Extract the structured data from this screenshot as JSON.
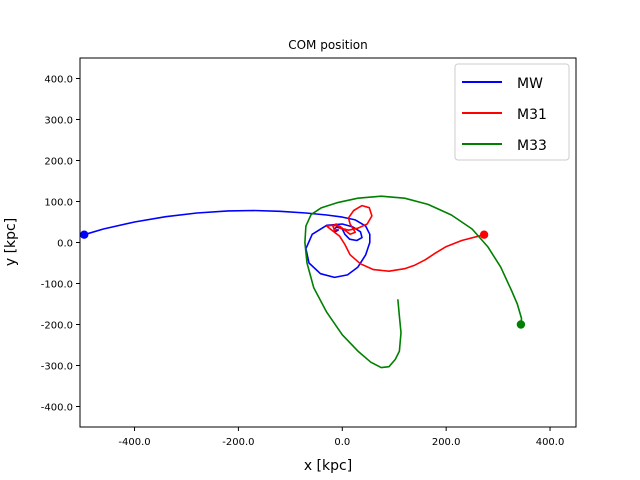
{
  "chart_data": {
    "type": "line",
    "title": "COM position",
    "xlabel": "x [kpc]",
    "ylabel": "y [kpc]",
    "xlim": [
      -505,
      450
    ],
    "ylim": [
      -450,
      450
    ],
    "x_ticks": [
      -400,
      -200,
      0,
      200,
      400
    ],
    "y_ticks": [
      -400,
      -300,
      -200,
      -100,
      0,
      100,
      200,
      300,
      400
    ],
    "x_tick_labels": [
      "-400.0",
      "-200.0",
      "0.0",
      "200.0",
      "400.0"
    ],
    "y_tick_labels": [
      "-400.0",
      "-300.0",
      "-200.0",
      "-100.0",
      "0.0",
      "100.0",
      "200.0",
      "300.0",
      "400.0"
    ],
    "grid": false,
    "legend_position": "top-right",
    "series": [
      {
        "name": "MW",
        "color": "#0000ff",
        "start_marker": [
          -497,
          19
        ],
        "points": [
          [
            -497,
            19
          ],
          [
            -460,
            33
          ],
          [
            -400,
            50
          ],
          [
            -340,
            63
          ],
          [
            -280,
            72
          ],
          [
            -220,
            77
          ],
          [
            -170,
            78
          ],
          [
            -120,
            76
          ],
          [
            -70,
            72
          ],
          [
            -30,
            67
          ],
          [
            0,
            62
          ],
          [
            25,
            55
          ],
          [
            45,
            40
          ],
          [
            53,
            20
          ],
          [
            53,
            0
          ],
          [
            45,
            -30
          ],
          [
            30,
            -60
          ],
          [
            10,
            -79
          ],
          [
            -15,
            -85
          ],
          [
            -42,
            -76
          ],
          [
            -64,
            -50
          ],
          [
            -70,
            -15
          ],
          [
            -58,
            20
          ],
          [
            -30,
            42
          ],
          [
            0,
            45
          ],
          [
            20,
            38
          ],
          [
            35,
            26
          ],
          [
            38,
            12
          ],
          [
            28,
            5
          ],
          [
            14,
            8
          ],
          [
            5,
            20
          ],
          [
            0,
            33
          ],
          [
            -10,
            38
          ],
          [
            -16,
            33
          ],
          [
            -14,
            26
          ],
          [
            -8,
            30
          ]
        ]
      },
      {
        "name": "M31",
        "color": "#ff0000",
        "start_marker": [
          273,
          19
        ],
        "points": [
          [
            273,
            19
          ],
          [
            230,
            5
          ],
          [
            200,
            -10
          ],
          [
            180,
            -25
          ],
          [
            160,
            -42
          ],
          [
            140,
            -55
          ],
          [
            120,
            -64
          ],
          [
            90,
            -70
          ],
          [
            60,
            -66
          ],
          [
            35,
            -52
          ],
          [
            15,
            -30
          ],
          [
            5,
            -5
          ],
          [
            -5,
            15
          ],
          [
            -20,
            30
          ],
          [
            -30,
            40
          ],
          [
            -20,
            42
          ],
          [
            -5,
            40
          ],
          [
            5,
            30
          ],
          [
            15,
            20
          ],
          [
            25,
            25
          ],
          [
            15,
            45
          ],
          [
            12,
            60
          ],
          [
            22,
            78
          ],
          [
            38,
            90
          ],
          [
            52,
            85
          ],
          [
            57,
            65
          ],
          [
            48,
            45
          ],
          [
            30,
            35
          ],
          [
            12,
            30
          ],
          [
            -3,
            35
          ],
          [
            -12,
            45
          ],
          [
            -18,
            40
          ],
          [
            -15,
            30
          ],
          [
            -8,
            32
          ]
        ]
      },
      {
        "name": "M33",
        "color": "#008000",
        "start_marker": [
          344,
          -200
        ],
        "points": [
          [
            344,
            -200
          ],
          [
            345,
            -185
          ],
          [
            337,
            -150
          ],
          [
            325,
            -115
          ],
          [
            305,
            -60
          ],
          [
            280,
            -10
          ],
          [
            250,
            33
          ],
          [
            210,
            67
          ],
          [
            165,
            93
          ],
          [
            120,
            108
          ],
          [
            75,
            113
          ],
          [
            30,
            108
          ],
          [
            -10,
            97
          ],
          [
            -40,
            85
          ],
          [
            -60,
            68
          ],
          [
            -70,
            40
          ],
          [
            -72,
            0
          ],
          [
            -68,
            -50
          ],
          [
            -55,
            -110
          ],
          [
            -30,
            -170
          ],
          [
            0,
            -225
          ],
          [
            30,
            -265
          ],
          [
            55,
            -292
          ],
          [
            75,
            -305
          ],
          [
            90,
            -303
          ],
          [
            102,
            -285
          ],
          [
            110,
            -265
          ],
          [
            113,
            -220
          ],
          [
            110,
            -180
          ],
          [
            107,
            -140
          ]
        ]
      }
    ]
  }
}
